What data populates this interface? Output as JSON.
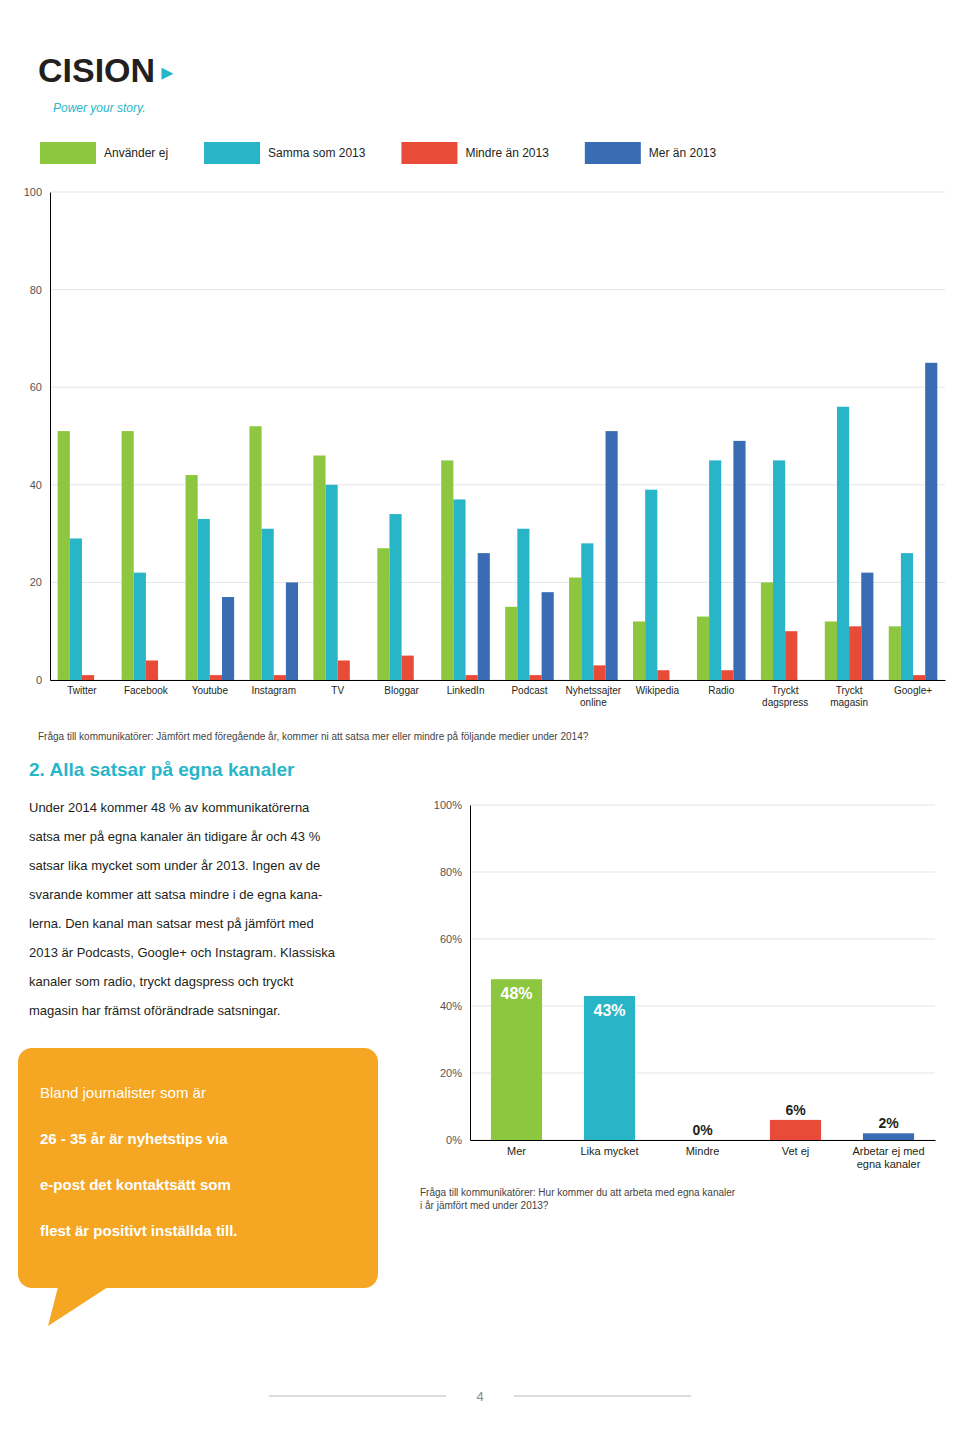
{
  "chart_data": [
    {
      "type": "bar",
      "categories": [
        "Twitter",
        "Facebook",
        "Youtube",
        "Instagram",
        "TV",
        "Bloggar",
        "LinkedIn",
        "Podcast",
        "Nyhetssajter\nonline",
        "Wikipedia",
        "Radio",
        "Tryckt\ndagspress",
        "Tryckt\nmagasin",
        "Google+"
      ],
      "series": [
        {
          "name": "Använder ej",
          "color": "#8DC63F",
          "values": [
            51,
            51,
            42,
            52,
            46,
            27,
            45,
            15,
            21,
            12,
            13,
            20,
            12,
            11
          ]
        },
        {
          "name": "Samma som 2013",
          "color": "#29B5C8",
          "values": [
            29,
            22,
            33,
            31,
            40,
            34,
            37,
            31,
            28,
            39,
            45,
            45,
            56,
            26
          ]
        },
        {
          "name": "Mindre än 2013",
          "color": "#E84B37",
          "values": [
            1,
            4,
            1,
            1,
            4,
            5,
            1,
            1,
            3,
            2,
            2,
            10,
            11,
            1
          ]
        },
        {
          "name": "Mer än 2013",
          "color": "#3A6CB4",
          "values": [
            0,
            0,
            17,
            20,
            0,
            0,
            26,
            18,
            51,
            0,
            49,
            0,
            22,
            65
          ]
        }
      ],
      "ylim": [
        0,
        100
      ],
      "yticks": [
        0,
        20,
        40,
        60,
        80,
        100
      ],
      "grid": true,
      "legend": "top",
      "annotations": [
        "Fråga till kommunikatörer: Jämfört med föregående år, kommer ni att satsa mer eller mindre på följande medier under 2014?"
      ]
    },
    {
      "type": "bar",
      "categories": [
        "Mer",
        "Lika mycket",
        "Mindre",
        "Vet ej",
        "Arbetar ej med\negna kanaler"
      ],
      "values": [
        48,
        43,
        0,
        6,
        2
      ],
      "colors": [
        "#8DC63F",
        "#29B5C8",
        "#cccccc",
        "#E84B37",
        "#3A6CB4"
      ],
      "ylim": [
        0,
        100
      ],
      "yticks": [
        {
          "value": 0,
          "label": "0%"
        },
        {
          "value": 20,
          "label": "20%"
        },
        {
          "value": 40,
          "label": "40%"
        },
        {
          "value": 60,
          "label": "60%"
        },
        {
          "value": 80,
          "label": "80%"
        },
        {
          "value": 100,
          "label": "100%"
        }
      ],
      "grid": true,
      "data_labels": true,
      "value_labels": [
        "48%",
        "43%",
        "0%",
        "6%",
        "2%"
      ],
      "annotations": [
        "Fråga till kommunikatörer: Hur kommer du att arbeta med egna kanaler\ni år jämfört med under 2013?"
      ]
    }
  ],
  "logo": "CISION",
  "logo_mark": "▸",
  "tagline": "Power your story.",
  "section_title": "2. Alla satsar på egna kanaler",
  "section_text": [
    "Under 2014 kommer 48 % av kommunikatörerna",
    "satsa mer på egna kanaler än tidigare år och 43 %",
    "satsar lika mycket som under år 2013. Ingen av de",
    "svarande kommer att satsa mindre i de egna kana-",
    "lerna. Den kanal man satsar mest på jämfört med",
    "2013 är Podcasts, Google+ och Instagram. Klassiska",
    "kanaler som radio, tryckt dagspress och tryckt",
    "magasin har främst oförändrade satsningar."
  ],
  "callout": {
    "text": "Bland journalister som är\n26 - 35 år är nyhetstips via\ne-post det kontaktsätt som\nflest är positivt inställda till.",
    "color": "#F5A623"
  },
  "page_number": "4"
}
